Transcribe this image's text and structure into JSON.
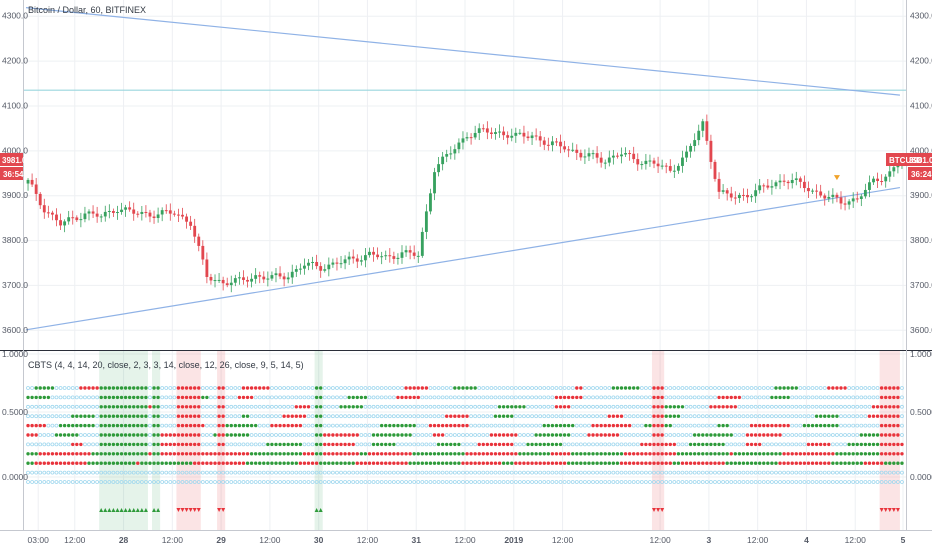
{
  "chart_data": [
    {
      "type": "candlestick",
      "title": "Bitcoin / Dollar, 60, BITFINEX",
      "y_ticks": [
        "4300.0",
        "4200.0",
        "4100.0",
        "4000.0",
        "3900.0",
        "3800.0",
        "3700.0",
        "3600.0"
      ],
      "ylim": [
        3555,
        4335
      ],
      "grid": true,
      "price_tag_left": "3981.0",
      "countdown_left": "36:54",
      "price_tag_right": "3981.0",
      "symbol_tag": "BTCUSD",
      "countdown_right": "36:24",
      "horizontal_line": 4134,
      "trendlines": [
        {
          "from": [
            0,
            4318
          ],
          "to": [
            215,
            4123
          ]
        },
        {
          "from": [
            0,
            3600
          ],
          "to": [
            215,
            3917
          ]
        }
      ],
      "marker": {
        "index": 199,
        "value": 3938
      },
      "closes_anchor": [
        [
          0,
          3930
        ],
        [
          4,
          3870
        ],
        [
          8,
          3835
        ],
        [
          14,
          3860
        ],
        [
          18,
          3852
        ],
        [
          22,
          3872
        ],
        [
          26,
          3860
        ],
        [
          30,
          3858
        ],
        [
          36,
          3860
        ],
        [
          40,
          3840
        ],
        [
          44,
          3718
        ],
        [
          48,
          3706
        ],
        [
          52,
          3708
        ],
        [
          56,
          3720
        ],
        [
          60,
          3715
        ],
        [
          64,
          3722
        ],
        [
          68,
          3745
        ],
        [
          72,
          3740
        ],
        [
          76,
          3748
        ],
        [
          80,
          3758
        ],
        [
          84,
          3768
        ],
        [
          88,
          3760
        ],
        [
          92,
          3772
        ],
        [
          96,
          3765
        ],
        [
          100,
          3960
        ],
        [
          104,
          3995
        ],
        [
          108,
          4035
        ],
        [
          112,
          4042
        ],
        [
          116,
          4040
        ],
        [
          120,
          4030
        ],
        [
          124,
          4035
        ],
        [
          128,
          4012
        ],
        [
          132,
          4010
        ],
        [
          136,
          3988
        ],
        [
          140,
          3985
        ],
        [
          142,
          3978
        ],
        [
          146,
          3992
        ],
        [
          150,
          3978
        ],
        [
          154,
          3970
        ],
        [
          158,
          3955
        ],
        [
          162,
          3990
        ],
        [
          166,
          4060
        ],
        [
          170,
          3905
        ],
        [
          174,
          3895
        ],
        [
          178,
          3905
        ],
        [
          182,
          3920
        ],
        [
          186,
          3935
        ],
        [
          188,
          3932
        ],
        [
          192,
          3915
        ],
        [
          196,
          3898
        ],
        [
          200,
          3885
        ],
        [
          204,
          3892
        ],
        [
          208,
          3930
        ],
        [
          212,
          3950
        ],
        [
          215,
          3981
        ]
      ]
    },
    {
      "type": "dot-matrix",
      "title": "CBTS (4, 4, 14, 20, close, 2, 3, 3, 14, close, 12, 26, close, 9, 5, 14, 5)",
      "y_ticks": [
        "1.0000",
        "0.5000",
        "0.0000"
      ],
      "rows": 11,
      "colors": {
        "up": "#2e9a3a",
        "down": "#e8333b",
        "neutral": "#9fd7ee"
      },
      "up_zones": [
        [
          18,
          30
        ],
        [
          31,
          33
        ],
        [
          71,
          73
        ]
      ],
      "down_zones": [
        [
          37,
          43
        ],
        [
          47,
          49
        ],
        [
          154,
          157
        ],
        [
          210,
          215
        ]
      ]
    }
  ],
  "x_ticks": [
    {
      "label": "03:00",
      "i": 3
    },
    {
      "label": "12:00",
      "i": 12
    },
    {
      "label": "28",
      "i": 24
    },
    {
      "label": "12:00",
      "i": 36
    },
    {
      "label": "29",
      "i": 48
    },
    {
      "label": "12:00",
      "i": 60
    },
    {
      "label": "30",
      "i": 72
    },
    {
      "label": "12:00",
      "i": 84
    },
    {
      "label": "31",
      "i": 96
    },
    {
      "label": "12:00",
      "i": 108
    },
    {
      "label": "2019",
      "i": 120
    },
    {
      "label": "12:00",
      "i": 132
    },
    {
      "label": "12:00",
      "i": 156
    },
    {
      "label": "3",
      "i": 168
    },
    {
      "label": "12:00",
      "i": 180
    },
    {
      "label": "4",
      "i": 192
    },
    {
      "label": "12:00",
      "i": 204
    },
    {
      "label": "5",
      "i": 216
    }
  ],
  "colors": {
    "up": "#37a15f",
    "down": "#e2474f",
    "trend": "#8fb2e6",
    "hline": "#9ad6de",
    "marker": "#f0a22a",
    "tag": "#e2474f"
  }
}
